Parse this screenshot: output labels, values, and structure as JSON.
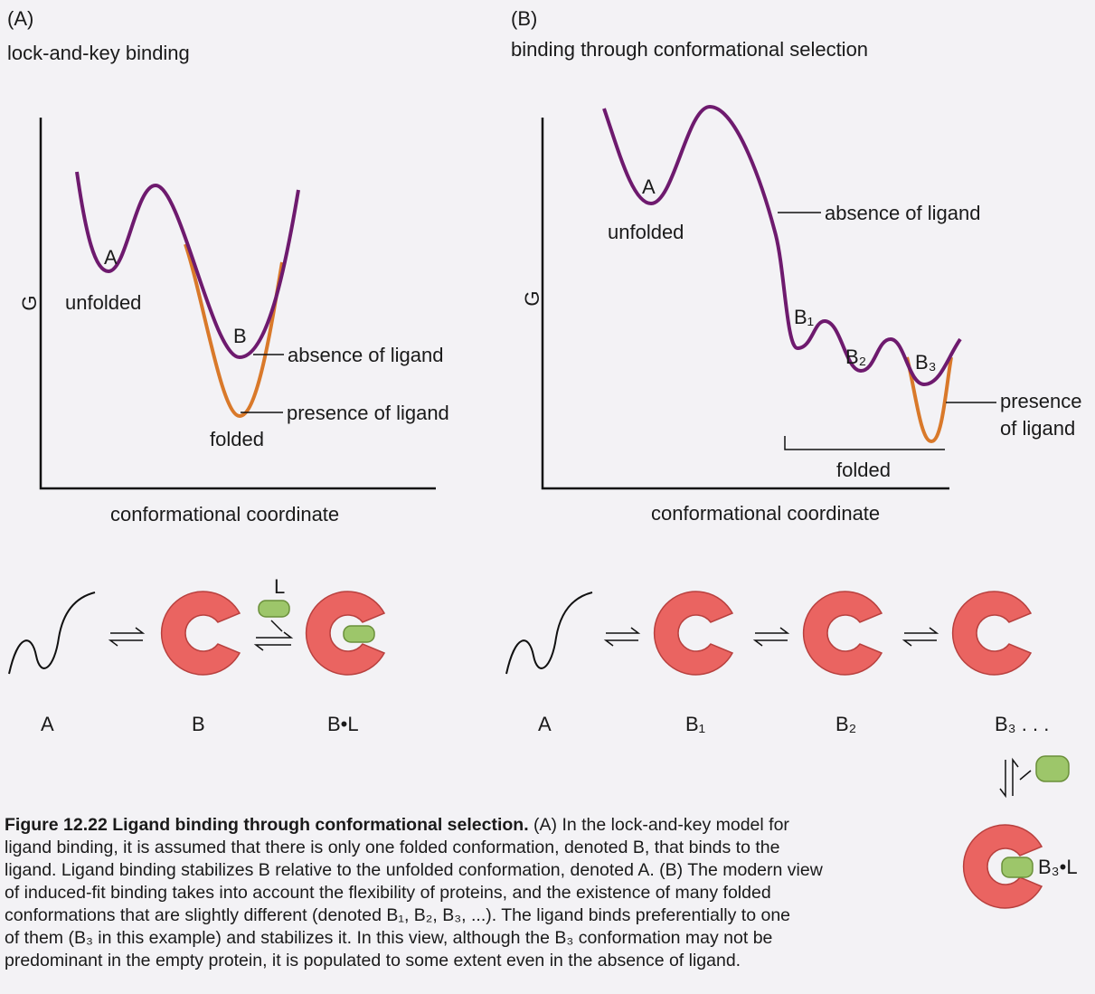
{
  "panel_a": {
    "label": "(A)",
    "title": "lock-and-key binding",
    "y_axis": "G",
    "x_axis": "conformational coordinate",
    "state_a": "A",
    "unfolded": "unfolded",
    "state_b": "B",
    "absence": "absence of ligand",
    "presence": "presence of ligand",
    "folded": "folded",
    "scheme": {
      "ligand": "L",
      "a": "A",
      "b": "B",
      "bl": "B•L"
    }
  },
  "panel_b": {
    "label": "(B)",
    "title": "binding through conformational selection",
    "y_axis": "G",
    "x_axis": "conformational coordinate",
    "state_a": "A",
    "unfolded": "unfolded",
    "absence": "absence of ligand",
    "b1": "B₁",
    "b2": "B₂",
    "b3": "B₃",
    "presence_1": "presence",
    "presence_2": "of ligand",
    "folded": "folded",
    "scheme": {
      "a": "A",
      "b1": "B₁",
      "b2": "B₂",
      "b3": "B₃ . . .",
      "b3l": "B₃•L"
    }
  },
  "caption": {
    "title": "Figure 12.22 Ligand binding through conformational selection.",
    "lines": [
      " (A) In the lock-and-key model for",
      "ligand binding, it is assumed that there is only one folded conformation, denoted B, that binds to the",
      "ligand. Ligand binding stabilizes B relative to the unfolded conformation, denoted A. (B) The modern view",
      "of induced-fit binding takes into account the flexibility of proteins, and the existence of many folded",
      "conformations that are slightly different (denoted B₁, B₂, B₃, ...). The ligand binds preferentially to one",
      "of them (B₃ in this example) and stabilizes it. In this view, although the B₃ conformation may not be",
      "predominant in the empty protein, it is populated to some extent even in the absence of ligand."
    ]
  }
}
